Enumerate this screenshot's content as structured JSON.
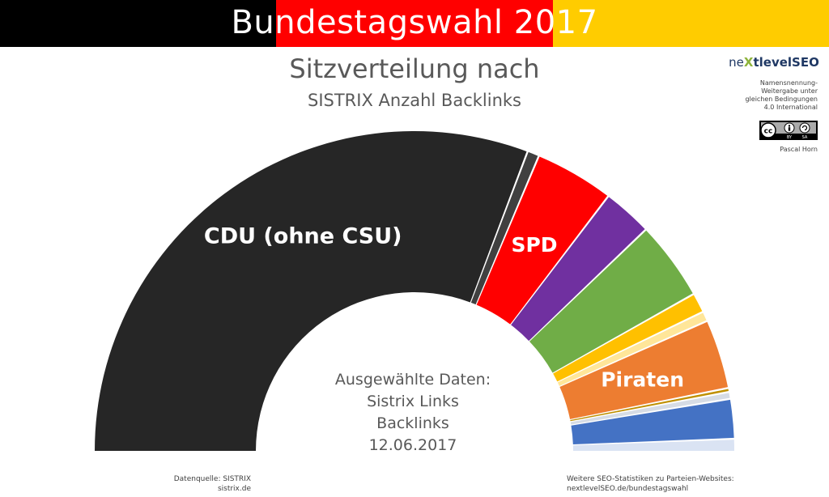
{
  "header": {
    "title": "Bundestagswahl 2017",
    "flag_colors": [
      "#000000",
      "#ff0000",
      "#ffcc00"
    ]
  },
  "subtitle": {
    "line1": "Sitzverteilung nach",
    "line2": "SISTRIX Anzahl Backlinks"
  },
  "branding": {
    "logo_prefix": "ne",
    "logo_x": "X",
    "logo_suffix": "tlevelSEO",
    "license_lines": [
      "Namensnennung-",
      "Weitergabe unter",
      "gleichen Bedingungen",
      "4.0 International"
    ],
    "cc_badge": "cc-by-sa-badge",
    "author": "Pascal Horn"
  },
  "chart_data": {
    "type": "pie",
    "subtype": "half-donut-parliament",
    "slices": [
      {
        "label": "CDU (ohne CSU)",
        "value": 61.5,
        "color": "#262626",
        "show_label": true
      },
      {
        "label": "",
        "value": 1.2,
        "color": "#404040",
        "show_label": false
      },
      {
        "label": "SPD",
        "value": 8.0,
        "color": "#ff0000",
        "show_label": true
      },
      {
        "label": "",
        "value": 5.0,
        "color": "#7030a0",
        "show_label": false
      },
      {
        "label": "",
        "value": 8.0,
        "color": "#70ad47",
        "show_label": false
      },
      {
        "label": "",
        "value": 2.0,
        "color": "#ffc000",
        "show_label": false
      },
      {
        "label": "",
        "value": 1.0,
        "color": "#ffe699",
        "show_label": false
      },
      {
        "label": "Piraten",
        "value": 7.0,
        "color": "#ed7d31",
        "show_label": true
      },
      {
        "label": "",
        "value": 0.4,
        "color": "#bf9000",
        "show_label": false
      },
      {
        "label": "",
        "value": 0.7,
        "color": "#d6dce5",
        "show_label": false
      },
      {
        "label": "",
        "value": 4.0,
        "color": "#4472c4",
        "show_label": false
      },
      {
        "label": "",
        "value": 1.2,
        "color": "#dae3f3",
        "show_label": false
      }
    ]
  },
  "center_label": {
    "line1": "Ausgewählte Daten:",
    "line2": "Sistrix Links",
    "line3": "Backlinks",
    "line4": "12.06.2017"
  },
  "footer": {
    "source_line1": "Datenquelle: SISTRIX",
    "source_line2": "sistrix.de",
    "more_line1": "Weitere SEO-Statistiken zu Parteien-Websites:",
    "more_line2": "nextlevelSEO.de/bundestagswahl"
  }
}
